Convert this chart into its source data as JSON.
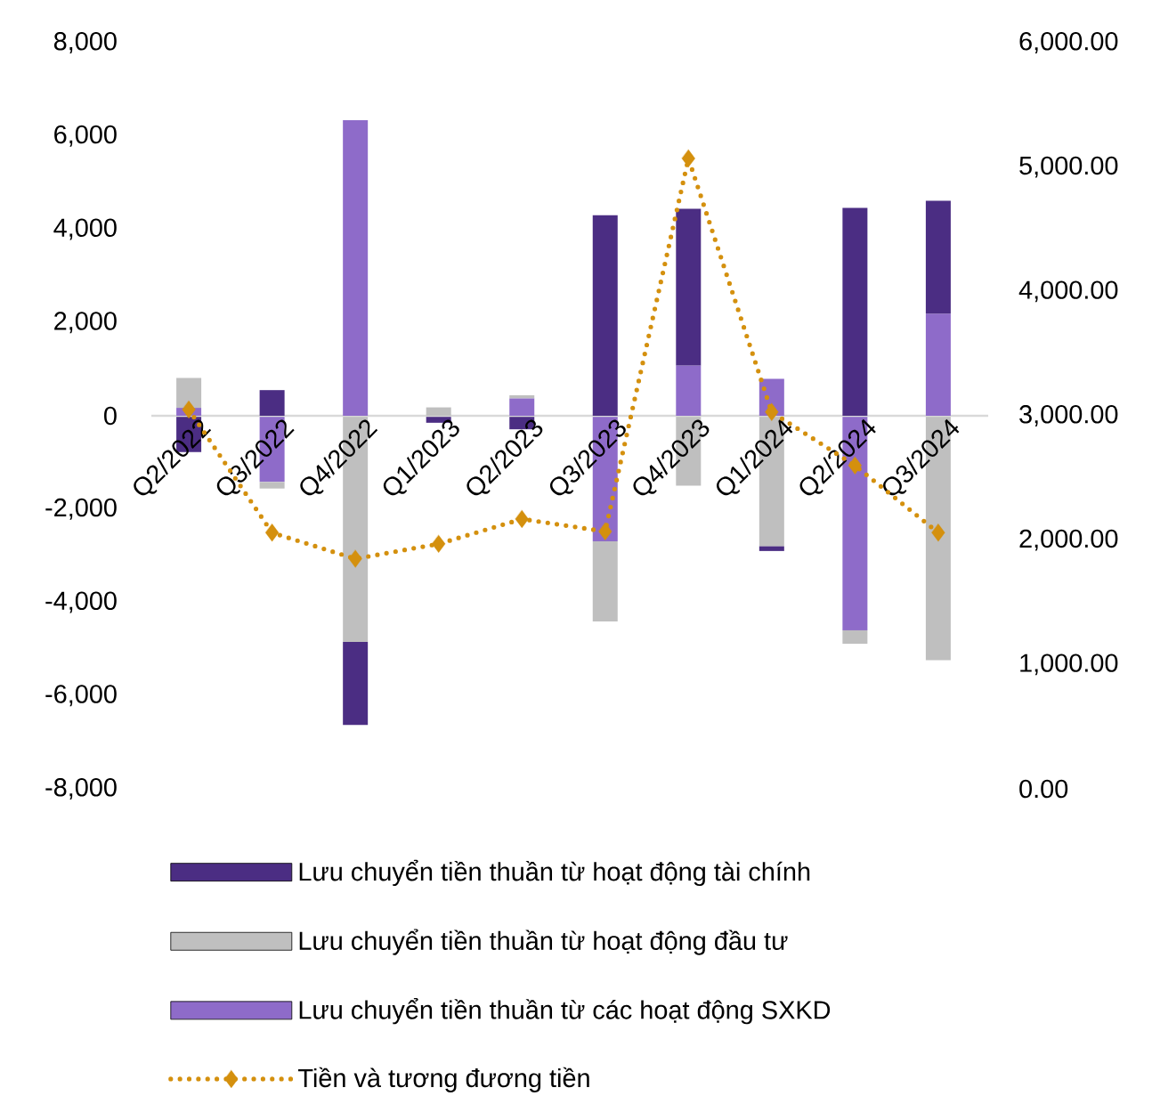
{
  "chart_data": {
    "type": "bar",
    "stacked": true,
    "legend": "bottom",
    "categories": [
      "Q2/2022",
      "Q3/2022",
      "Q4/2022",
      "Q1/2023",
      "Q2/2023",
      "Q3/2023",
      "Q4/2023",
      "Q1/2024",
      "Q2/2024",
      "Q3/2024"
    ],
    "series": [
      {
        "name": "Lưu chuyển tiền thuần từ các hoạt động SXKD",
        "color": "#8e6bc9",
        "values": [
          170,
          -1420,
          6340,
          0,
          375,
          -2690,
          1080,
          790,
          -4600,
          2190
        ]
      },
      {
        "name": "Lưu chuyển tiền thuần từ hoạt động đầu tư",
        "color": "#bfbfbf",
        "values": [
          640,
          -140,
          -4850,
          180,
          65,
          -1720,
          -1500,
          -2800,
          -290,
          -5240
        ]
      },
      {
        "name": "Lưu chuyển tiền thuần từ hoạt động tài chính",
        "color": "#4b2d83",
        "values": [
          -780,
          550,
          -1780,
          -150,
          -290,
          4300,
          3360,
          -100,
          4460,
          2420
        ]
      },
      {
        "name": "Tiền và tương đương tiền",
        "type": "line",
        "axis": "y2",
        "color": "#d4900e",
        "marker": "diamond",
        "line_style": "dotted",
        "values": [
          3050,
          2060,
          1850,
          1970,
          2170,
          2070,
          5070,
          3030,
          2600,
          2060
        ]
      }
    ],
    "ylim": [
      -8000,
      8000
    ],
    "yticks": [
      {
        "value": -8000,
        "label": "-8,000"
      },
      {
        "value": -6000,
        "label": "-6,000"
      },
      {
        "value": -4000,
        "label": "-4,000"
      },
      {
        "value": -2000,
        "label": "-2,000"
      },
      0,
      {
        "value": 2000,
        "label": "2,000"
      },
      {
        "value": 4000,
        "label": "4,000"
      },
      {
        "value": 6000,
        "label": "6,000"
      },
      {
        "value": 8000,
        "label": "8,000"
      }
    ],
    "y2lim": [
      0,
      6000
    ],
    "y2ticks": [
      {
        "value": 0,
        "label": "0.00"
      },
      {
        "value": 1000,
        "label": "1,000.00"
      },
      {
        "value": 2000,
        "label": "2,000.00"
      },
      {
        "value": 3000,
        "label": "3,000.00"
      },
      {
        "value": 4000,
        "label": "4,000.00"
      },
      {
        "value": 5000,
        "label": "5,000.00"
      },
      {
        "value": 6000,
        "label": "6,000.00"
      }
    ]
  }
}
